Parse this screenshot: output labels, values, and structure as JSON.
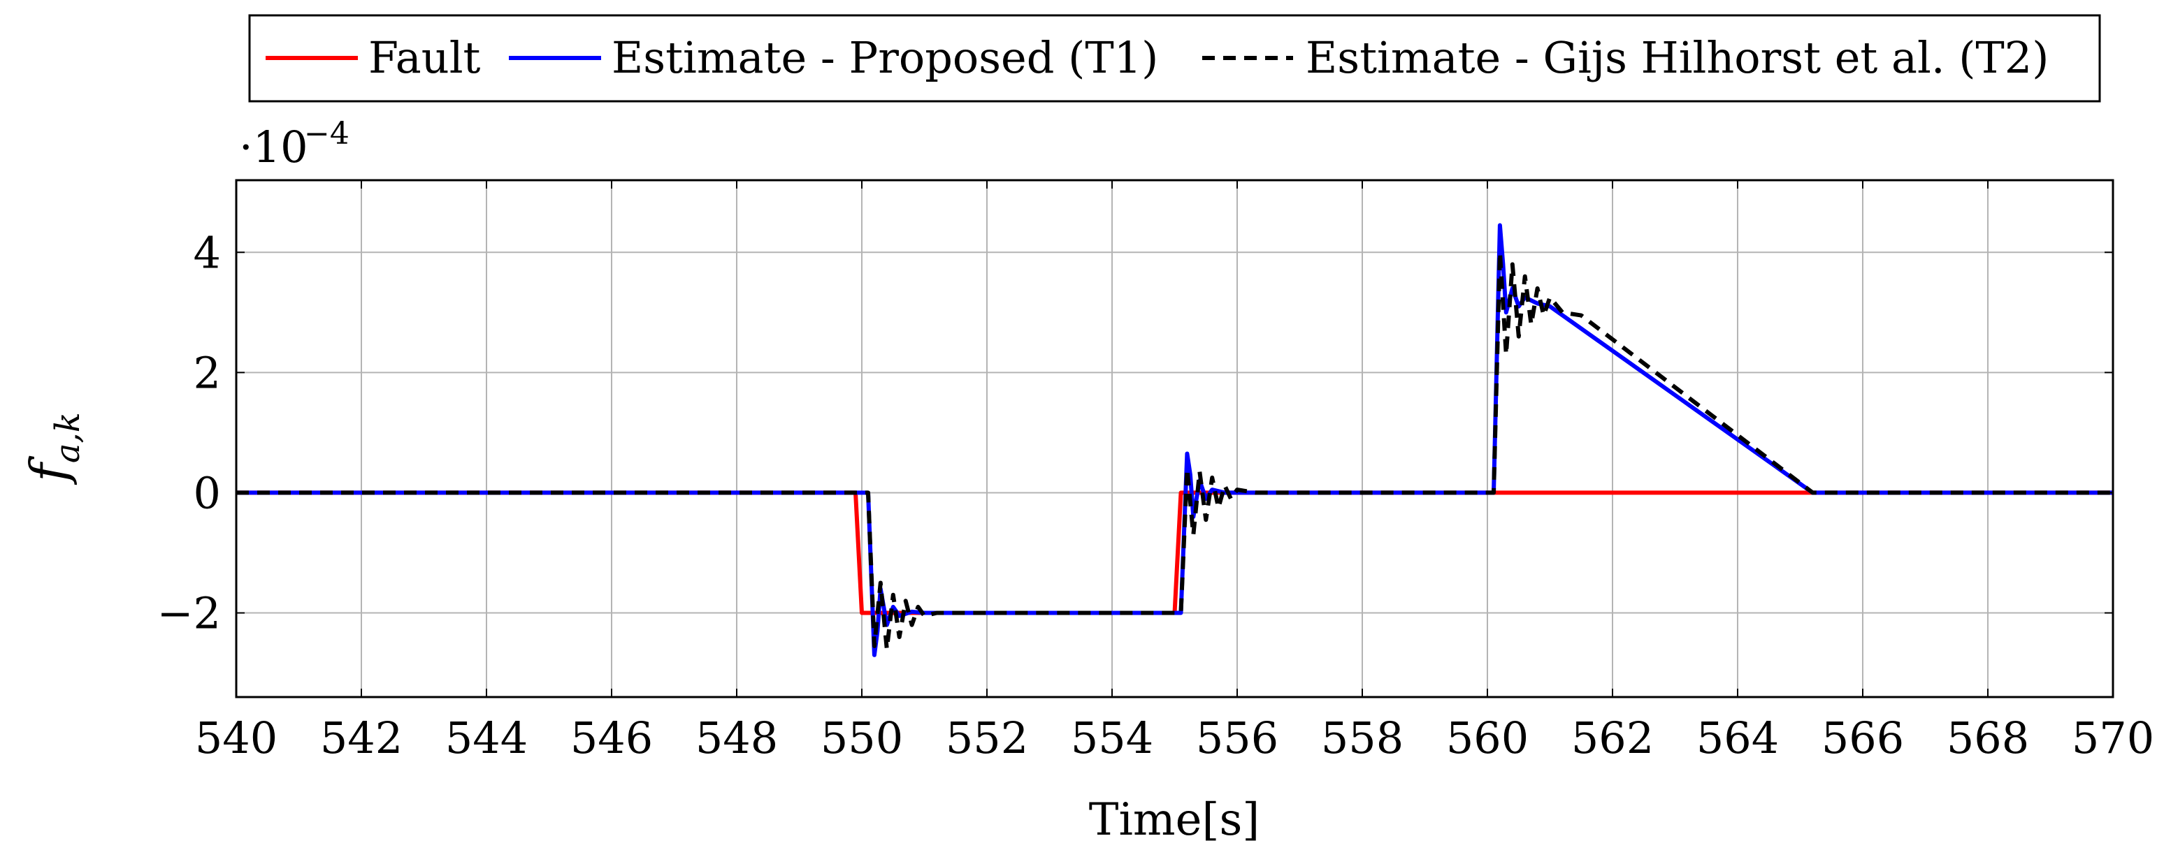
{
  "chart_data": {
    "type": "line",
    "title": "",
    "xlabel": "Time[s]",
    "ylabel_main": "f",
    "ylabel_sub": "a,k",
    "y_multiplier_base": "·10",
    "y_multiplier_exp": "−4",
    "xlim": [
      540,
      570
    ],
    "ylim": [
      -3.4,
      5.2
    ],
    "grid": true,
    "legend_position": "top",
    "x_ticks": [
      540,
      542,
      544,
      546,
      548,
      550,
      552,
      554,
      556,
      558,
      560,
      562,
      564,
      566,
      568,
      570
    ],
    "x_tick_labels": [
      "540",
      "542",
      "544",
      "546",
      "548",
      "550",
      "552",
      "554",
      "556",
      "558",
      "560",
      "562",
      "564",
      "566",
      "568",
      "570"
    ],
    "y_ticks": [
      -2,
      0,
      2,
      4
    ],
    "y_tick_labels": [
      "−2",
      "0",
      "2",
      "4"
    ],
    "series": [
      {
        "name": "Fault",
        "color": "#ff0000",
        "style": "solid",
        "x": [
          540,
          549.9,
          550.0,
          555.0,
          555.1,
          565.2,
          570
        ],
        "y": [
          0,
          0,
          -2,
          -2,
          0,
          0,
          0
        ]
      },
      {
        "name": "Estimate - Proposed (T1)",
        "color": "#0000ff",
        "style": "solid",
        "x": [
          540,
          550.1,
          550.2,
          550.25,
          550.3,
          550.4,
          550.5,
          550.6,
          550.8,
          551.0,
          555.1,
          555.2,
          555.25,
          555.3,
          555.4,
          555.5,
          555.6,
          555.8,
          556.0,
          560.1,
          560.2,
          560.25,
          560.3,
          560.4,
          560.5,
          560.6,
          560.8,
          561.0,
          565.2,
          570
        ],
        "y": [
          0,
          0,
          -2.7,
          -2.3,
          -1.6,
          -2.2,
          -1.9,
          -2.05,
          -1.98,
          -2,
          -2,
          0.65,
          0.3,
          -0.4,
          0.2,
          -0.1,
          0.05,
          0.0,
          0,
          0,
          4.45,
          3.8,
          3.0,
          3.4,
          3.1,
          3.25,
          3.15,
          3.1,
          0,
          0
        ]
      },
      {
        "name": "Estimate - Gijs Hilhorst et al. (T2)",
        "color": "#000000",
        "style": "dashed",
        "x": [
          540,
          550.1,
          550.2,
          550.3,
          550.4,
          550.5,
          550.6,
          550.7,
          550.8,
          550.9,
          551.0,
          551.2,
          551.5,
          555.1,
          555.2,
          555.3,
          555.4,
          555.5,
          555.6,
          555.7,
          555.8,
          555.9,
          556.0,
          556.3,
          560.1,
          560.2,
          560.3,
          560.4,
          560.5,
          560.6,
          560.7,
          560.8,
          560.9,
          561.0,
          561.2,
          561.5,
          565.2,
          570
        ],
        "y": [
          0,
          0,
          -2.55,
          -1.5,
          -2.6,
          -1.7,
          -2.4,
          -1.8,
          -2.2,
          -1.9,
          -2.05,
          -2.0,
          -2,
          -2,
          0.4,
          -0.7,
          0.35,
          -0.45,
          0.25,
          -0.25,
          0.12,
          -0.1,
          0.05,
          0,
          0,
          4.0,
          2.3,
          3.8,
          2.6,
          3.6,
          2.8,
          3.4,
          2.95,
          3.25,
          3.0,
          2.95,
          0,
          0
        ]
      }
    ]
  }
}
